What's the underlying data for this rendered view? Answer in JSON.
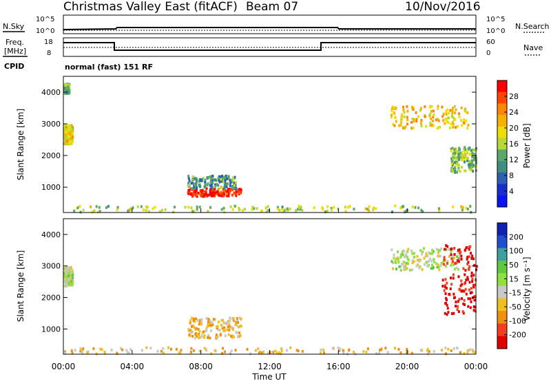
{
  "header": {
    "title": "Christmas Valley East (fitACF)",
    "beam": "Beam 07",
    "date": "10/Nov/2016"
  },
  "top_panels": {
    "nsky_label": "N.Sky",
    "nsearch_label": "N.Search",
    "noise_ticks_left": [
      "10^5",
      "10^0"
    ],
    "noise_ticks_right": [
      "10^5",
      "10^0"
    ],
    "freq_label_1": "Freq.",
    "freq_label_2": "[MHz]",
    "freq_ticks": [
      "18",
      "8"
    ],
    "nave_label": "Nave",
    "nave_ticks": [
      "60",
      "0"
    ],
    "cpid_label": "CPID",
    "cpid_text": "normal (fast) 151 RF"
  },
  "chart_data": [
    {
      "type": "heatmap",
      "name": "power",
      "ylabel": "Slant Range [km]",
      "ylim": [
        200,
        4500
      ],
      "yticks": [
        "1000",
        "2000",
        "3000",
        "4000"
      ],
      "colorbar_label": "Power [dB]",
      "colorbar_ticks": [
        "28",
        "24",
        "20",
        "16",
        "12",
        "8",
        "4"
      ],
      "colorbar_colors": [
        "#ff0000",
        "#ff4400",
        "#ff8800",
        "#f6b000",
        "#ede000",
        "#b8d838",
        "#5aa86a",
        "#3f8f80",
        "#2f5fb0",
        "#1a2ed0",
        "#0a14f0"
      ],
      "regions": [
        {
          "t0": 7.2,
          "t1": 10.3,
          "r0": 750,
          "r1": 1000,
          "level": 0.95
        },
        {
          "t0": 7.2,
          "t1": 10.0,
          "r0": 1000,
          "r1": 1400,
          "level": 0.35
        },
        {
          "t0": 0.0,
          "t1": 0.5,
          "r0": 2400,
          "r1": 3000,
          "level": 0.6
        },
        {
          "t0": 0.0,
          "t1": 0.3,
          "r0": 4000,
          "r1": 4300,
          "level": 0.4
        },
        {
          "t0": 19.0,
          "t1": 23.5,
          "r0": 2900,
          "r1": 3600,
          "level": 0.65
        },
        {
          "t0": 22.5,
          "t1": 24.0,
          "r0": 1500,
          "r1": 2300,
          "level": 0.45
        },
        {
          "t0": 0.0,
          "t1": 24.0,
          "r0": 250,
          "r1": 450,
          "level": 0.5
        }
      ]
    },
    {
      "type": "heatmap",
      "name": "velocity",
      "ylabel": "Slant Range [km]",
      "ylim": [
        200,
        4500
      ],
      "yticks": [
        "1000",
        "2000",
        "3000",
        "4000"
      ],
      "xlabel": "Time UT",
      "xticks": [
        "00:00",
        "04:00",
        "08:00",
        "12:00",
        "16:00",
        "20:00",
        "00:00"
      ],
      "colorbar_label": "Velocity [m s⁻¹]",
      "colorbar_ticks": [
        "200",
        "100",
        "50",
        "15",
        "-15",
        "-50",
        "-100",
        "-200"
      ],
      "colorbar_colors": [
        "#1020b0",
        "#2050d0",
        "#3fa0a0",
        "#60c840",
        "#90e040",
        "#c8c8c8",
        "#f0c020",
        "#f09010",
        "#f04020",
        "#e00000"
      ],
      "regions": [
        {
          "t0": 7.2,
          "t1": 10.3,
          "r0": 750,
          "r1": 1400,
          "level": 0.35
        },
        {
          "t0": 0.0,
          "t1": 0.5,
          "r0": 2400,
          "r1": 3000,
          "level": 0.5
        },
        {
          "t0": 19.0,
          "t1": 23.0,
          "r0": 2900,
          "r1": 3600,
          "level": 0.5
        },
        {
          "t0": 22.0,
          "t1": 24.0,
          "r0": 1500,
          "r1": 3700,
          "level": 0.05
        },
        {
          "t0": 0.0,
          "t1": 24.0,
          "r0": 250,
          "r1": 450,
          "level": 0.35
        }
      ]
    }
  ]
}
